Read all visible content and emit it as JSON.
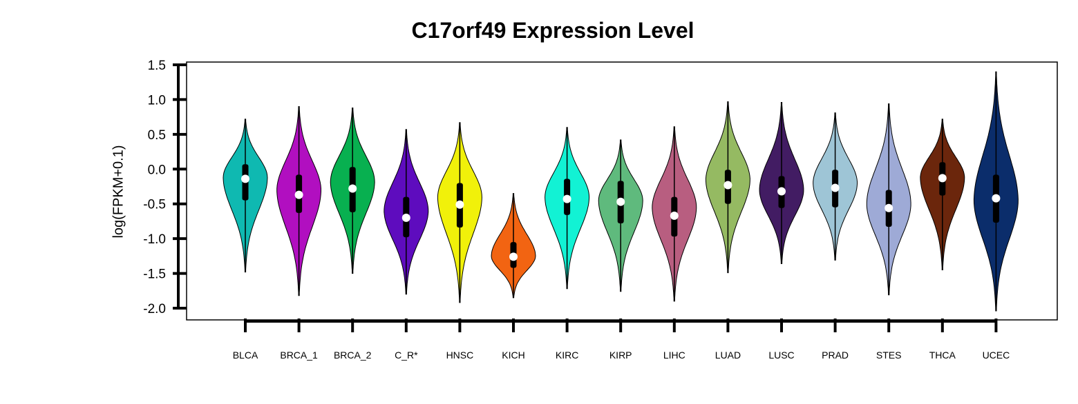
{
  "chart_data": {
    "type": "violin",
    "title": "C17orf49 Expression Level",
    "xlabel": "",
    "ylabel": "log(FPKM+0.1)",
    "ylim": [
      -2.0,
      1.5
    ],
    "yticks": [
      "1.5",
      "1.0",
      "0.5",
      "0.0",
      "-0.5",
      "-1.0",
      "-1.5",
      "-2.0"
    ],
    "ytick_values": [
      1.5,
      1.0,
      0.5,
      0.0,
      -0.5,
      -1.0,
      -1.5,
      -2.0
    ],
    "grid": false,
    "legend": "none",
    "categories": [
      "BLCA",
      "BRCA_1",
      "BRCA_2",
      "C_R*",
      "HNSC",
      "KICH",
      "KIRC",
      "KIRP",
      "LIHC",
      "LUAD",
      "LUSC",
      "PRAD",
      "STES",
      "THCA",
      "UCEC"
    ],
    "colors": [
      "#0fb9b1",
      "#b10fc0",
      "#08b050",
      "#5e0cbe",
      "#f1f10a",
      "#f26412",
      "#12f2d4",
      "#5fba7d",
      "#b85e80",
      "#95ba62",
      "#421c63",
      "#9ec5d6",
      "#9eaad6",
      "#6b260c",
      "#0b2d6b"
    ],
    "series": [
      {
        "category": "BLCA",
        "min": -1.48,
        "q1": -0.45,
        "median": -0.14,
        "q3": 0.07,
        "max": 0.72,
        "peak": -0.12
      },
      {
        "category": "BRCA_1",
        "min": -1.82,
        "q1": -0.63,
        "median": -0.37,
        "q3": -0.08,
        "max": 0.9,
        "peak": -0.3
      },
      {
        "category": "BRCA_2",
        "min": -1.5,
        "q1": -0.62,
        "median": -0.28,
        "q3": 0.03,
        "max": 0.88,
        "peak": -0.18
      },
      {
        "category": "C_R*",
        "min": -1.8,
        "q1": -0.98,
        "median": -0.7,
        "q3": -0.4,
        "max": 0.57,
        "peak": -0.6
      },
      {
        "category": "HNSC",
        "min": -1.92,
        "q1": -0.84,
        "median": -0.51,
        "q3": -0.2,
        "max": 0.67,
        "peak": -0.4
      },
      {
        "category": "KICH",
        "min": -1.85,
        "q1": -1.42,
        "median": -1.26,
        "q3": -1.05,
        "max": -0.35,
        "peak": -1.25
      },
      {
        "category": "KIRC",
        "min": -1.72,
        "q1": -0.66,
        "median": -0.43,
        "q3": -0.14,
        "max": 0.6,
        "peak": -0.4
      },
      {
        "category": "KIRP",
        "min": -1.76,
        "q1": -0.78,
        "median": -0.47,
        "q3": -0.17,
        "max": 0.42,
        "peak": -0.45
      },
      {
        "category": "LIHC",
        "min": -1.9,
        "q1": -0.97,
        "median": -0.67,
        "q3": -0.4,
        "max": 0.61,
        "peak": -0.55
      },
      {
        "category": "LUAD",
        "min": -1.49,
        "q1": -0.5,
        "median": -0.23,
        "q3": -0.01,
        "max": 0.97,
        "peak": -0.15
      },
      {
        "category": "LUSC",
        "min": -1.36,
        "q1": -0.56,
        "median": -0.32,
        "q3": -0.1,
        "max": 0.96,
        "peak": -0.3
      },
      {
        "category": "PRAD",
        "min": -1.31,
        "q1": -0.55,
        "median": -0.27,
        "q3": -0.01,
        "max": 0.81,
        "peak": -0.2
      },
      {
        "category": "STES",
        "min": -1.81,
        "q1": -0.83,
        "median": -0.56,
        "q3": -0.3,
        "max": 0.94,
        "peak": -0.5
      },
      {
        "category": "THCA",
        "min": -1.45,
        "q1": -0.38,
        "median": -0.13,
        "q3": 0.1,
        "max": 0.72,
        "peak": -0.12
      },
      {
        "category": "UCEC",
        "min": -2.04,
        "q1": -0.77,
        "median": -0.42,
        "q3": -0.08,
        "max": 1.4,
        "peak": -0.45
      }
    ]
  }
}
